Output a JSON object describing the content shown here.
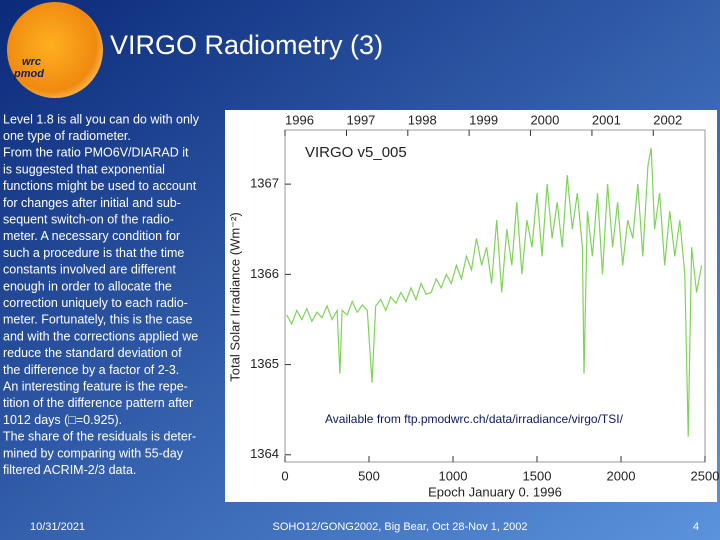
{
  "header": {
    "title": "VIRGO Radiometry (3)",
    "logo": [
      "wrc",
      "pmod"
    ]
  },
  "body": [
    [
      "Level 1.8 is all you can do with only",
      "one type of radiometer."
    ],
    [
      "From the ratio PMO6V/DIARAD it",
      "is suggested that exponential",
      "functions might be used to account",
      "for changes after initial and sub-",
      "sequent switch-on of the radio-",
      "meter. A necessary condition for",
      "such a procedure is that the time",
      "constants involved are different",
      "enough in order to allocate the",
      "correction uniquely to each radio-",
      "meter. Fortunately, this is the case",
      "and with the corrections applied we",
      "reduce the standard deviation of",
      "the difference by a factor of 2-3."
    ],
    [
      "An interesting feature is the repe-",
      "tition of the difference pattern after",
      "1012 days (□=0.925)."
    ],
    [
      "The share of the residuals is deter-",
      "mined by comparing with 55-day",
      "filtered ACRIM-2/3 data."
    ]
  ],
  "chart_data": {
    "type": "line",
    "annotation": "VIRGO v5_005",
    "y_label": "Total Solar Irradiance (Wm⁻²)",
    "x_label": "Epoch January 0. 1996",
    "color": "#7fd35a",
    "xlim": [
      0,
      2500
    ],
    "xticks": [
      0,
      500,
      1000,
      1500,
      2000,
      2500
    ],
    "ylim": [
      1363.92,
      1367.6
    ],
    "yticks": [
      1364,
      1365,
      1366,
      1367
    ],
    "x2ticks": [
      {
        "value": 0,
        "label": "1996"
      },
      {
        "value": 366,
        "label": "1997"
      },
      {
        "value": 731,
        "label": "1998"
      },
      {
        "value": 1096,
        "label": "1999"
      },
      {
        "value": 1461,
        "label": "2000"
      },
      {
        "value": 1827,
        "label": "2001"
      },
      {
        "value": 2192,
        "label": "2002"
      }
    ],
    "x": [
      10,
      40,
      70,
      100,
      130,
      160,
      190,
      220,
      250,
      280,
      310,
      327,
      340,
      370,
      400,
      430,
      460,
      490,
      518,
      540,
      570,
      600,
      630,
      660,
      690,
      720,
      750,
      780,
      810,
      840,
      870,
      900,
      930,
      960,
      990,
      1020,
      1050,
      1080,
      1110,
      1140,
      1170,
      1200,
      1230,
      1260,
      1290,
      1320,
      1350,
      1380,
      1410,
      1440,
      1470,
      1500,
      1530,
      1560,
      1590,
      1620,
      1650,
      1680,
      1710,
      1740,
      1770,
      1780,
      1800,
      1830,
      1860,
      1890,
      1920,
      1950,
      1980,
      2010,
      2040,
      2070,
      2100,
      2130,
      2160,
      2180,
      2200,
      2230,
      2260,
      2290,
      2320,
      2350,
      2380,
      2400,
      2420,
      2450,
      2480
    ],
    "series": [
      {
        "values": [
          1365.55,
          1365.45,
          1365.6,
          1365.5,
          1365.62,
          1365.48,
          1365.58,
          1365.52,
          1365.65,
          1365.5,
          1365.6,
          1364.9,
          1365.6,
          1365.55,
          1365.7,
          1365.58,
          1365.66,
          1365.6,
          1364.8,
          1365.65,
          1365.72,
          1365.6,
          1365.75,
          1365.68,
          1365.8,
          1365.7,
          1365.85,
          1365.72,
          1365.9,
          1365.78,
          1365.8,
          1365.95,
          1365.85,
          1366.0,
          1365.9,
          1366.1,
          1365.95,
          1366.2,
          1366.05,
          1366.4,
          1366.1,
          1366.3,
          1365.9,
          1366.6,
          1365.8,
          1366.5,
          1366.1,
          1366.8,
          1366.0,
          1366.6,
          1366.3,
          1366.9,
          1366.2,
          1367.0,
          1366.4,
          1366.8,
          1366.3,
          1367.1,
          1366.5,
          1366.9,
          1366.3,
          1364.9,
          1366.7,
          1366.2,
          1366.9,
          1366.0,
          1367.0,
          1366.3,
          1366.8,
          1366.1,
          1366.6,
          1366.4,
          1367.0,
          1366.2,
          1367.2,
          1367.4,
          1366.5,
          1366.9,
          1366.1,
          1366.7,
          1366.2,
          1366.6,
          1366.0,
          1364.2,
          1366.3,
          1365.8,
          1366.1
        ]
      }
    ]
  },
  "note": "Available from ftp.pmodwrc.ch/data/irradiance/virgo/TSI/",
  "footer": {
    "date": "10/31/2021",
    "event": "SOHO12/GONG2002, Big Bear, Oct 28-Nov 1, 2002",
    "page": "4"
  }
}
